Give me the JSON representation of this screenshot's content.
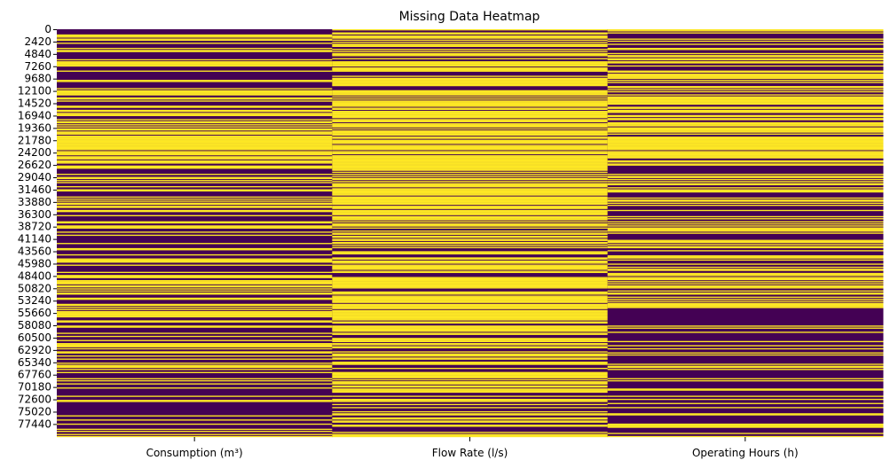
{
  "chart_data": {
    "type": "heatmap",
    "title": "Missing Data Heatmap",
    "xlabel": "",
    "ylabel": "",
    "columns": [
      "Consumption (m³)",
      "Flow Rate (l/s)",
      "Operating Hours (h)"
    ],
    "y_tick_labels": [
      "0",
      "2420",
      "4840",
      "7260",
      "9680",
      "12100",
      "14520",
      "16940",
      "19360",
      "21780",
      "24200",
      "26620",
      "29040",
      "31460",
      "33880",
      "36300",
      "38720",
      "41140",
      "43560",
      "45980",
      "48400",
      "50820",
      "53240",
      "55660",
      "58080",
      "60500",
      "62920",
      "65340",
      "67760",
      "70180",
      "72600",
      "75020",
      "77440"
    ],
    "y_range": [
      0,
      79000
    ],
    "colorbar": false,
    "colors": {
      "missing": "#fde725",
      "present": "#440154"
    },
    "bands": {
      "Consumption (m³)": [
        [
          0,
          3000,
          0.46
        ],
        [
          3000,
          6000,
          0.4
        ],
        [
          6000,
          9000,
          0.44
        ],
        [
          9000,
          12000,
          0.55
        ],
        [
          12000,
          15000,
          0.5
        ],
        [
          15000,
          18000,
          0.42
        ],
        [
          18000,
          21000,
          0.5
        ],
        [
          21000,
          24000,
          0.85
        ],
        [
          24000,
          26000,
          0.72
        ],
        [
          26000,
          29000,
          0.5
        ],
        [
          29000,
          31000,
          0.42
        ],
        [
          31000,
          34000,
          0.38
        ],
        [
          34000,
          37000,
          0.5
        ],
        [
          37000,
          40000,
          0.52
        ],
        [
          40000,
          42000,
          0.18
        ],
        [
          42000,
          45000,
          0.42
        ],
        [
          45000,
          48000,
          0.35
        ],
        [
          48000,
          51000,
          0.45
        ],
        [
          51000,
          54000,
          0.4
        ],
        [
          54000,
          57000,
          0.22
        ],
        [
          57000,
          60000,
          0.35
        ],
        [
          60000,
          63000,
          0.45
        ],
        [
          63000,
          66000,
          0.3
        ],
        [
          66000,
          69000,
          0.25
        ],
        [
          69000,
          72000,
          0.2
        ],
        [
          72000,
          75000,
          0.3
        ],
        [
          75000,
          77000,
          0.35
        ],
        [
          77000,
          79000,
          0.25
        ]
      ],
      "Flow Rate (l/s)": [
        [
          0,
          3000,
          0.65
        ],
        [
          3000,
          6000,
          0.6
        ],
        [
          6000,
          9000,
          0.7
        ],
        [
          9000,
          12000,
          0.75
        ],
        [
          12000,
          15000,
          0.7
        ],
        [
          15000,
          18000,
          0.72
        ],
        [
          18000,
          21000,
          0.68
        ],
        [
          21000,
          24000,
          0.9
        ],
        [
          24000,
          26000,
          0.85
        ],
        [
          26000,
          29000,
          0.72
        ],
        [
          29000,
          31000,
          0.7
        ],
        [
          31000,
          34000,
          0.7
        ],
        [
          34000,
          37000,
          0.65
        ],
        [
          37000,
          40000,
          0.62
        ],
        [
          40000,
          42000,
          0.6
        ],
        [
          42000,
          45000,
          0.58
        ],
        [
          45000,
          48000,
          0.7
        ],
        [
          48000,
          51000,
          0.75
        ],
        [
          51000,
          54000,
          0.72
        ],
        [
          54000,
          57000,
          0.68
        ],
        [
          57000,
          60000,
          0.62
        ],
        [
          60000,
          63000,
          0.65
        ],
        [
          63000,
          66000,
          0.6
        ],
        [
          66000,
          69000,
          0.58
        ],
        [
          69000,
          72000,
          0.55
        ],
        [
          72000,
          75000,
          0.6
        ],
        [
          75000,
          77000,
          0.7
        ],
        [
          77000,
          79000,
          0.65
        ]
      ],
      "Operating Hours (h)": [
        [
          0,
          3000,
          0.5
        ],
        [
          3000,
          6000,
          0.45
        ],
        [
          6000,
          9000,
          0.5
        ],
        [
          9000,
          12000,
          0.55
        ],
        [
          12000,
          15000,
          0.52
        ],
        [
          15000,
          18000,
          0.6
        ],
        [
          18000,
          21000,
          0.55
        ],
        [
          21000,
          24000,
          0.88
        ],
        [
          24000,
          26000,
          0.6
        ],
        [
          26000,
          29000,
          0.45
        ],
        [
          29000,
          31000,
          0.42
        ],
        [
          31000,
          34000,
          0.45
        ],
        [
          34000,
          37000,
          0.45
        ],
        [
          37000,
          40000,
          0.45
        ],
        [
          40000,
          42000,
          0.4
        ],
        [
          42000,
          45000,
          0.42
        ],
        [
          45000,
          48000,
          0.55
        ],
        [
          48000,
          51000,
          0.62
        ],
        [
          51000,
          54000,
          0.5
        ],
        [
          54000,
          57000,
          0.2
        ],
        [
          57000,
          60000,
          0.18
        ],
        [
          60000,
          63000,
          0.25
        ],
        [
          63000,
          66000,
          0.3
        ],
        [
          66000,
          69000,
          0.2
        ],
        [
          69000,
          72000,
          0.15
        ],
        [
          72000,
          75000,
          0.25
        ],
        [
          75000,
          77000,
          0.3
        ],
        [
          77000,
          79000,
          0.3
        ]
      ]
    }
  }
}
